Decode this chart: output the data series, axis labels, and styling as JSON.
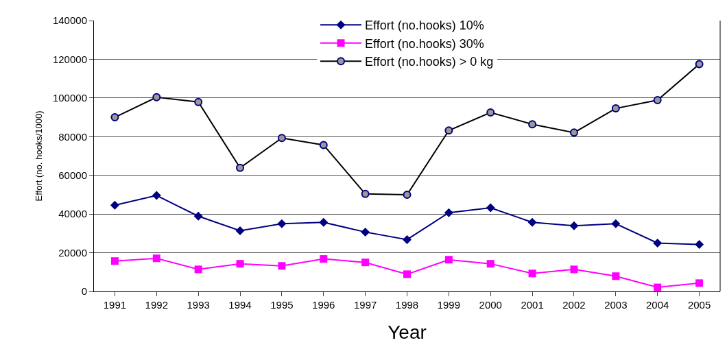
{
  "chart_data": {
    "type": "line",
    "xlabel": "Year",
    "ylabel": "Effort (no. hooks/1000)",
    "categories": [
      "1991",
      "1992",
      "1993",
      "1994",
      "1995",
      "1996",
      "1997",
      "1998",
      "1999",
      "2000",
      "2001",
      "2002",
      "2003",
      "2004",
      "2005"
    ],
    "series": [
      {
        "name": "Effort (no.hooks) 10%",
        "color": "#000080",
        "marker": "diamond",
        "values": [
          44600,
          49600,
          38900,
          31400,
          35000,
          35700,
          30700,
          26800,
          40700,
          43200,
          35700,
          33900,
          35000,
          25000,
          24300
        ]
      },
      {
        "name": "Effort (no.hooks) 30%",
        "color": "#ff00ff",
        "marker": "square",
        "values": [
          15700,
          17100,
          11400,
          14300,
          13200,
          16800,
          15000,
          8900,
          16400,
          14300,
          9300,
          11400,
          7900,
          2100,
          4300
        ]
      },
      {
        "name": "Effort (no.hooks) > 0 kg",
        "color": "#000000",
        "marker": "circle",
        "values": [
          90000,
          100400,
          97900,
          63900,
          79300,
          75700,
          50400,
          50000,
          83200,
          92500,
          86400,
          82100,
          94600,
          98900,
          117500
        ]
      }
    ],
    "ylim": [
      0,
      140000
    ],
    "yticks": [
      0,
      20000,
      40000,
      60000,
      80000,
      100000,
      120000,
      140000
    ],
    "grid": "y",
    "legend": "top"
  }
}
